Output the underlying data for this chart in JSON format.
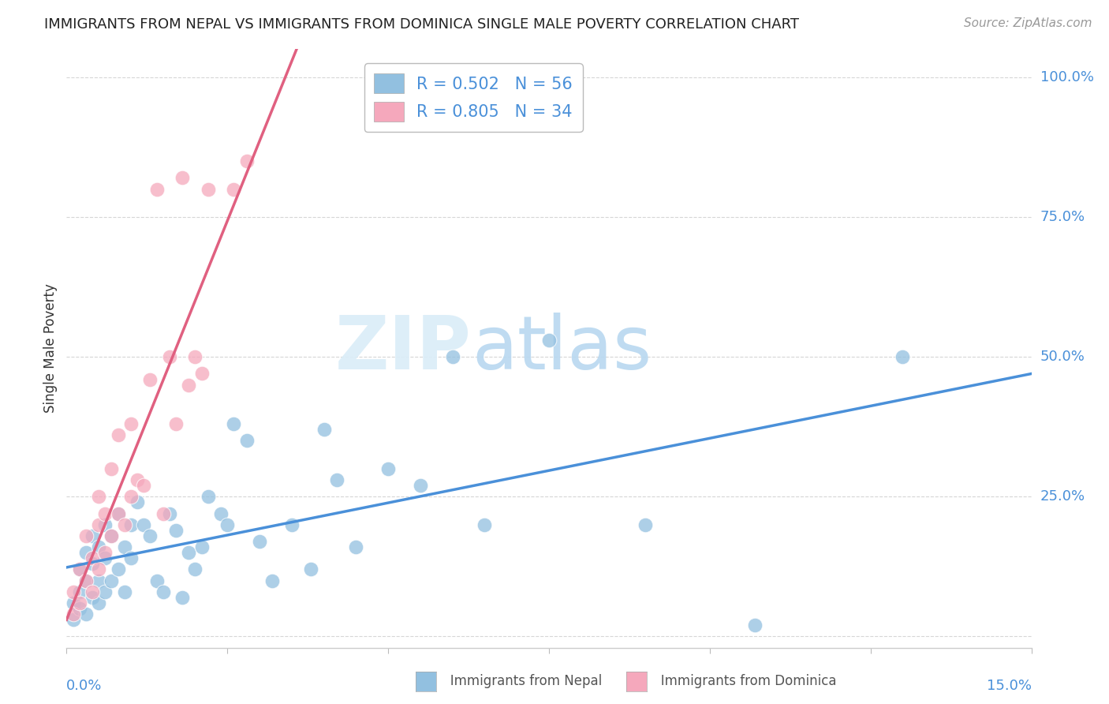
{
  "title": "IMMIGRANTS FROM NEPAL VS IMMIGRANTS FROM DOMINICA SINGLE MALE POVERTY CORRELATION CHART",
  "source": "Source: ZipAtlas.com",
  "ylabel": "Single Male Poverty",
  "xlim": [
    0.0,
    0.15
  ],
  "ylim": [
    -0.02,
    1.05
  ],
  "nepal_R": 0.502,
  "nepal_N": 56,
  "dominica_R": 0.805,
  "dominica_N": 34,
  "nepal_color": "#92c0e0",
  "dominica_color": "#f5a8bc",
  "nepal_line_color": "#4a90d9",
  "dominica_line_color": "#e06080",
  "watermark_color": "#daedf8",
  "right_tick_color": "#4a90d9",
  "nepal_x": [
    0.001,
    0.001,
    0.002,
    0.002,
    0.002,
    0.003,
    0.003,
    0.003,
    0.004,
    0.004,
    0.004,
    0.005,
    0.005,
    0.005,
    0.006,
    0.006,
    0.006,
    0.007,
    0.007,
    0.008,
    0.008,
    0.009,
    0.009,
    0.01,
    0.01,
    0.011,
    0.012,
    0.013,
    0.014,
    0.015,
    0.016,
    0.017,
    0.018,
    0.019,
    0.02,
    0.021,
    0.022,
    0.024,
    0.025,
    0.026,
    0.028,
    0.03,
    0.032,
    0.035,
    0.038,
    0.04,
    0.042,
    0.045,
    0.05,
    0.055,
    0.06,
    0.065,
    0.075,
    0.09,
    0.107,
    0.13
  ],
  "nepal_y": [
    0.03,
    0.06,
    0.05,
    0.08,
    0.12,
    0.04,
    0.1,
    0.15,
    0.07,
    0.13,
    0.18,
    0.06,
    0.1,
    0.16,
    0.08,
    0.14,
    0.2,
    0.1,
    0.18,
    0.12,
    0.22,
    0.08,
    0.16,
    0.14,
    0.2,
    0.24,
    0.2,
    0.18,
    0.1,
    0.08,
    0.22,
    0.19,
    0.07,
    0.15,
    0.12,
    0.16,
    0.25,
    0.22,
    0.2,
    0.38,
    0.35,
    0.17,
    0.1,
    0.2,
    0.12,
    0.37,
    0.28,
    0.16,
    0.3,
    0.27,
    0.5,
    0.2,
    0.53,
    0.2,
    0.02,
    0.5
  ],
  "dominica_x": [
    0.001,
    0.001,
    0.002,
    0.002,
    0.003,
    0.003,
    0.004,
    0.004,
    0.005,
    0.005,
    0.005,
    0.006,
    0.006,
    0.007,
    0.007,
    0.008,
    0.008,
    0.009,
    0.01,
    0.01,
    0.011,
    0.012,
    0.013,
    0.014,
    0.015,
    0.016,
    0.017,
    0.018,
    0.019,
    0.02,
    0.021,
    0.022,
    0.026,
    0.028
  ],
  "dominica_y": [
    0.04,
    0.08,
    0.06,
    0.12,
    0.1,
    0.18,
    0.08,
    0.14,
    0.12,
    0.2,
    0.25,
    0.15,
    0.22,
    0.18,
    0.3,
    0.22,
    0.36,
    0.2,
    0.25,
    0.38,
    0.28,
    0.27,
    0.46,
    0.8,
    0.22,
    0.5,
    0.38,
    0.82,
    0.45,
    0.5,
    0.47,
    0.8,
    0.8,
    0.85
  ],
  "yticks": [
    0.0,
    0.25,
    0.5,
    0.75,
    1.0
  ],
  "ytick_labels": [
    "",
    "25.0%",
    "50.0%",
    "75.0%",
    "100.0%"
  ],
  "xtick_positions": [
    0.0,
    0.025,
    0.05,
    0.075,
    0.1,
    0.125,
    0.15
  ],
  "title_fontsize": 13,
  "source_fontsize": 11,
  "label_fontsize": 12,
  "tick_fontsize": 13,
  "legend_fontsize": 15
}
